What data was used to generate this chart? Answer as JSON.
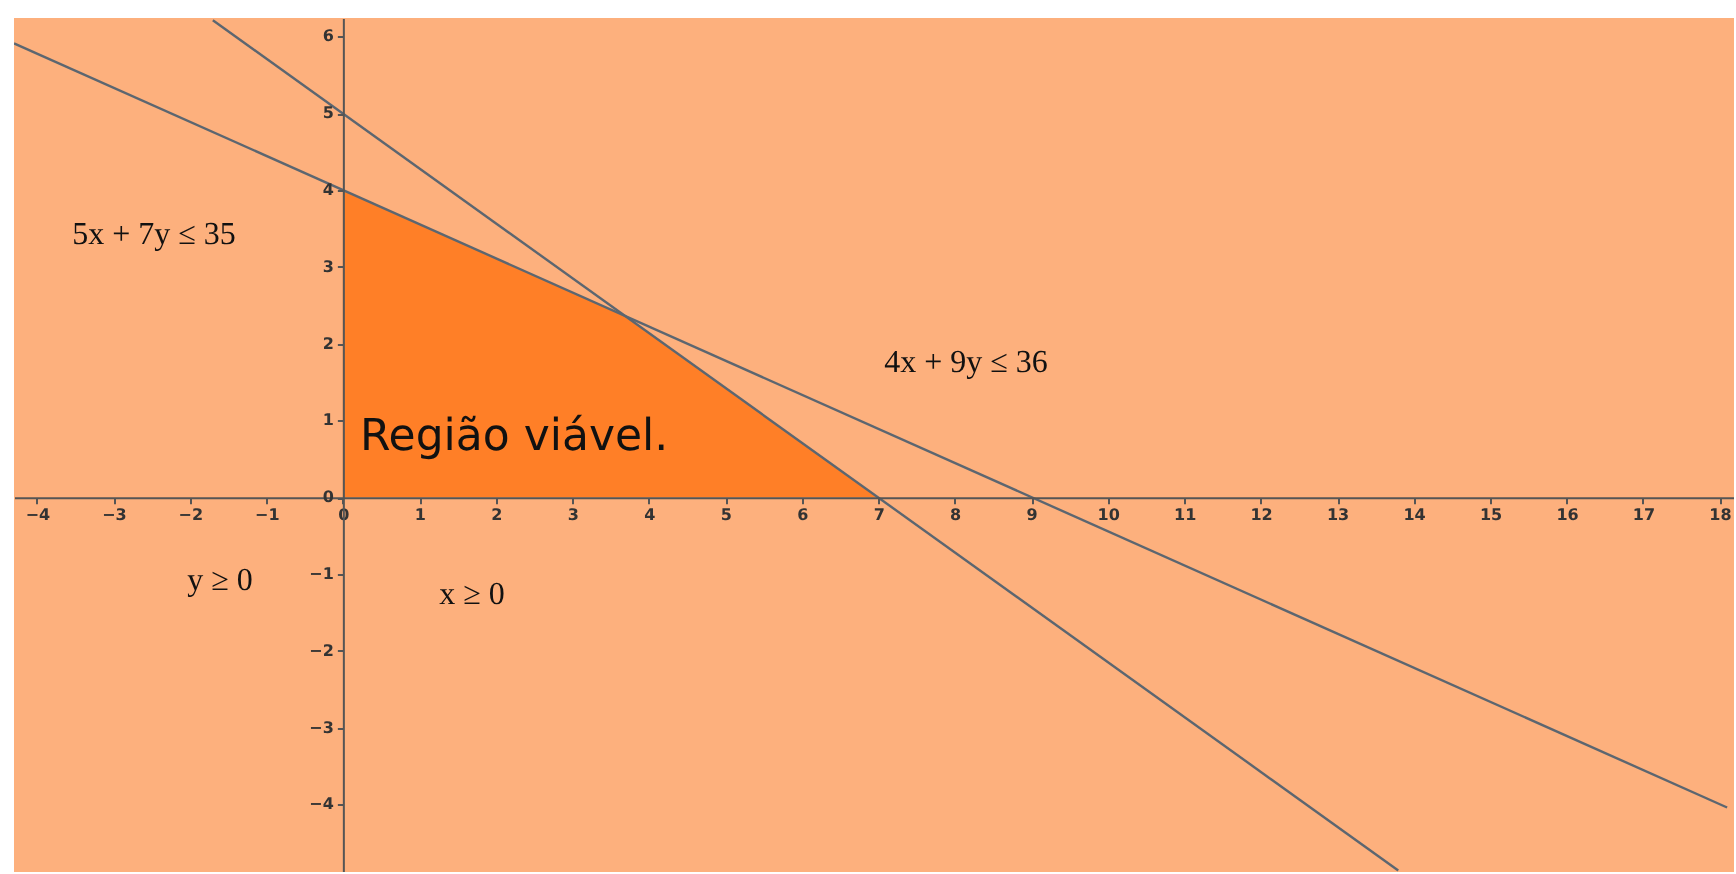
{
  "chart_data": {
    "type": "line",
    "xlim": [
      -4.3,
      18.19
    ],
    "ylim": [
      -4.88,
      6.24
    ],
    "xticks": [
      -4,
      -3,
      -2,
      -1,
      0,
      1,
      2,
      3,
      4,
      5,
      6,
      7,
      8,
      9,
      10,
      11,
      12,
      13,
      14,
      15,
      16,
      17,
      18
    ],
    "yticks": [
      -4,
      -3,
      -2,
      -1,
      0,
      1,
      2,
      3,
      4,
      5,
      6
    ],
    "grid": false,
    "series": [
      {
        "type": "area",
        "color": "#ff7f27",
        "x": [
          0,
          3.71,
          7
        ],
        "values": [
          4,
          2.35,
          0
        ]
      },
      {
        "color": "#5c6670",
        "x": [
          -1.7,
          13.8
        ],
        "values": [
          6.21,
          -4.86
        ]
      },
      {
        "color": "#5c6670",
        "x": [
          -4.3,
          18.1
        ],
        "values": [
          5.91,
          -4.04
        ]
      }
    ],
    "annotations": [
      "Região viável.",
      "5x + 7y ≤ 35",
      "4x + 9y ≤ 36",
      "y ≥ 0",
      "x ≥ 0"
    ]
  }
}
